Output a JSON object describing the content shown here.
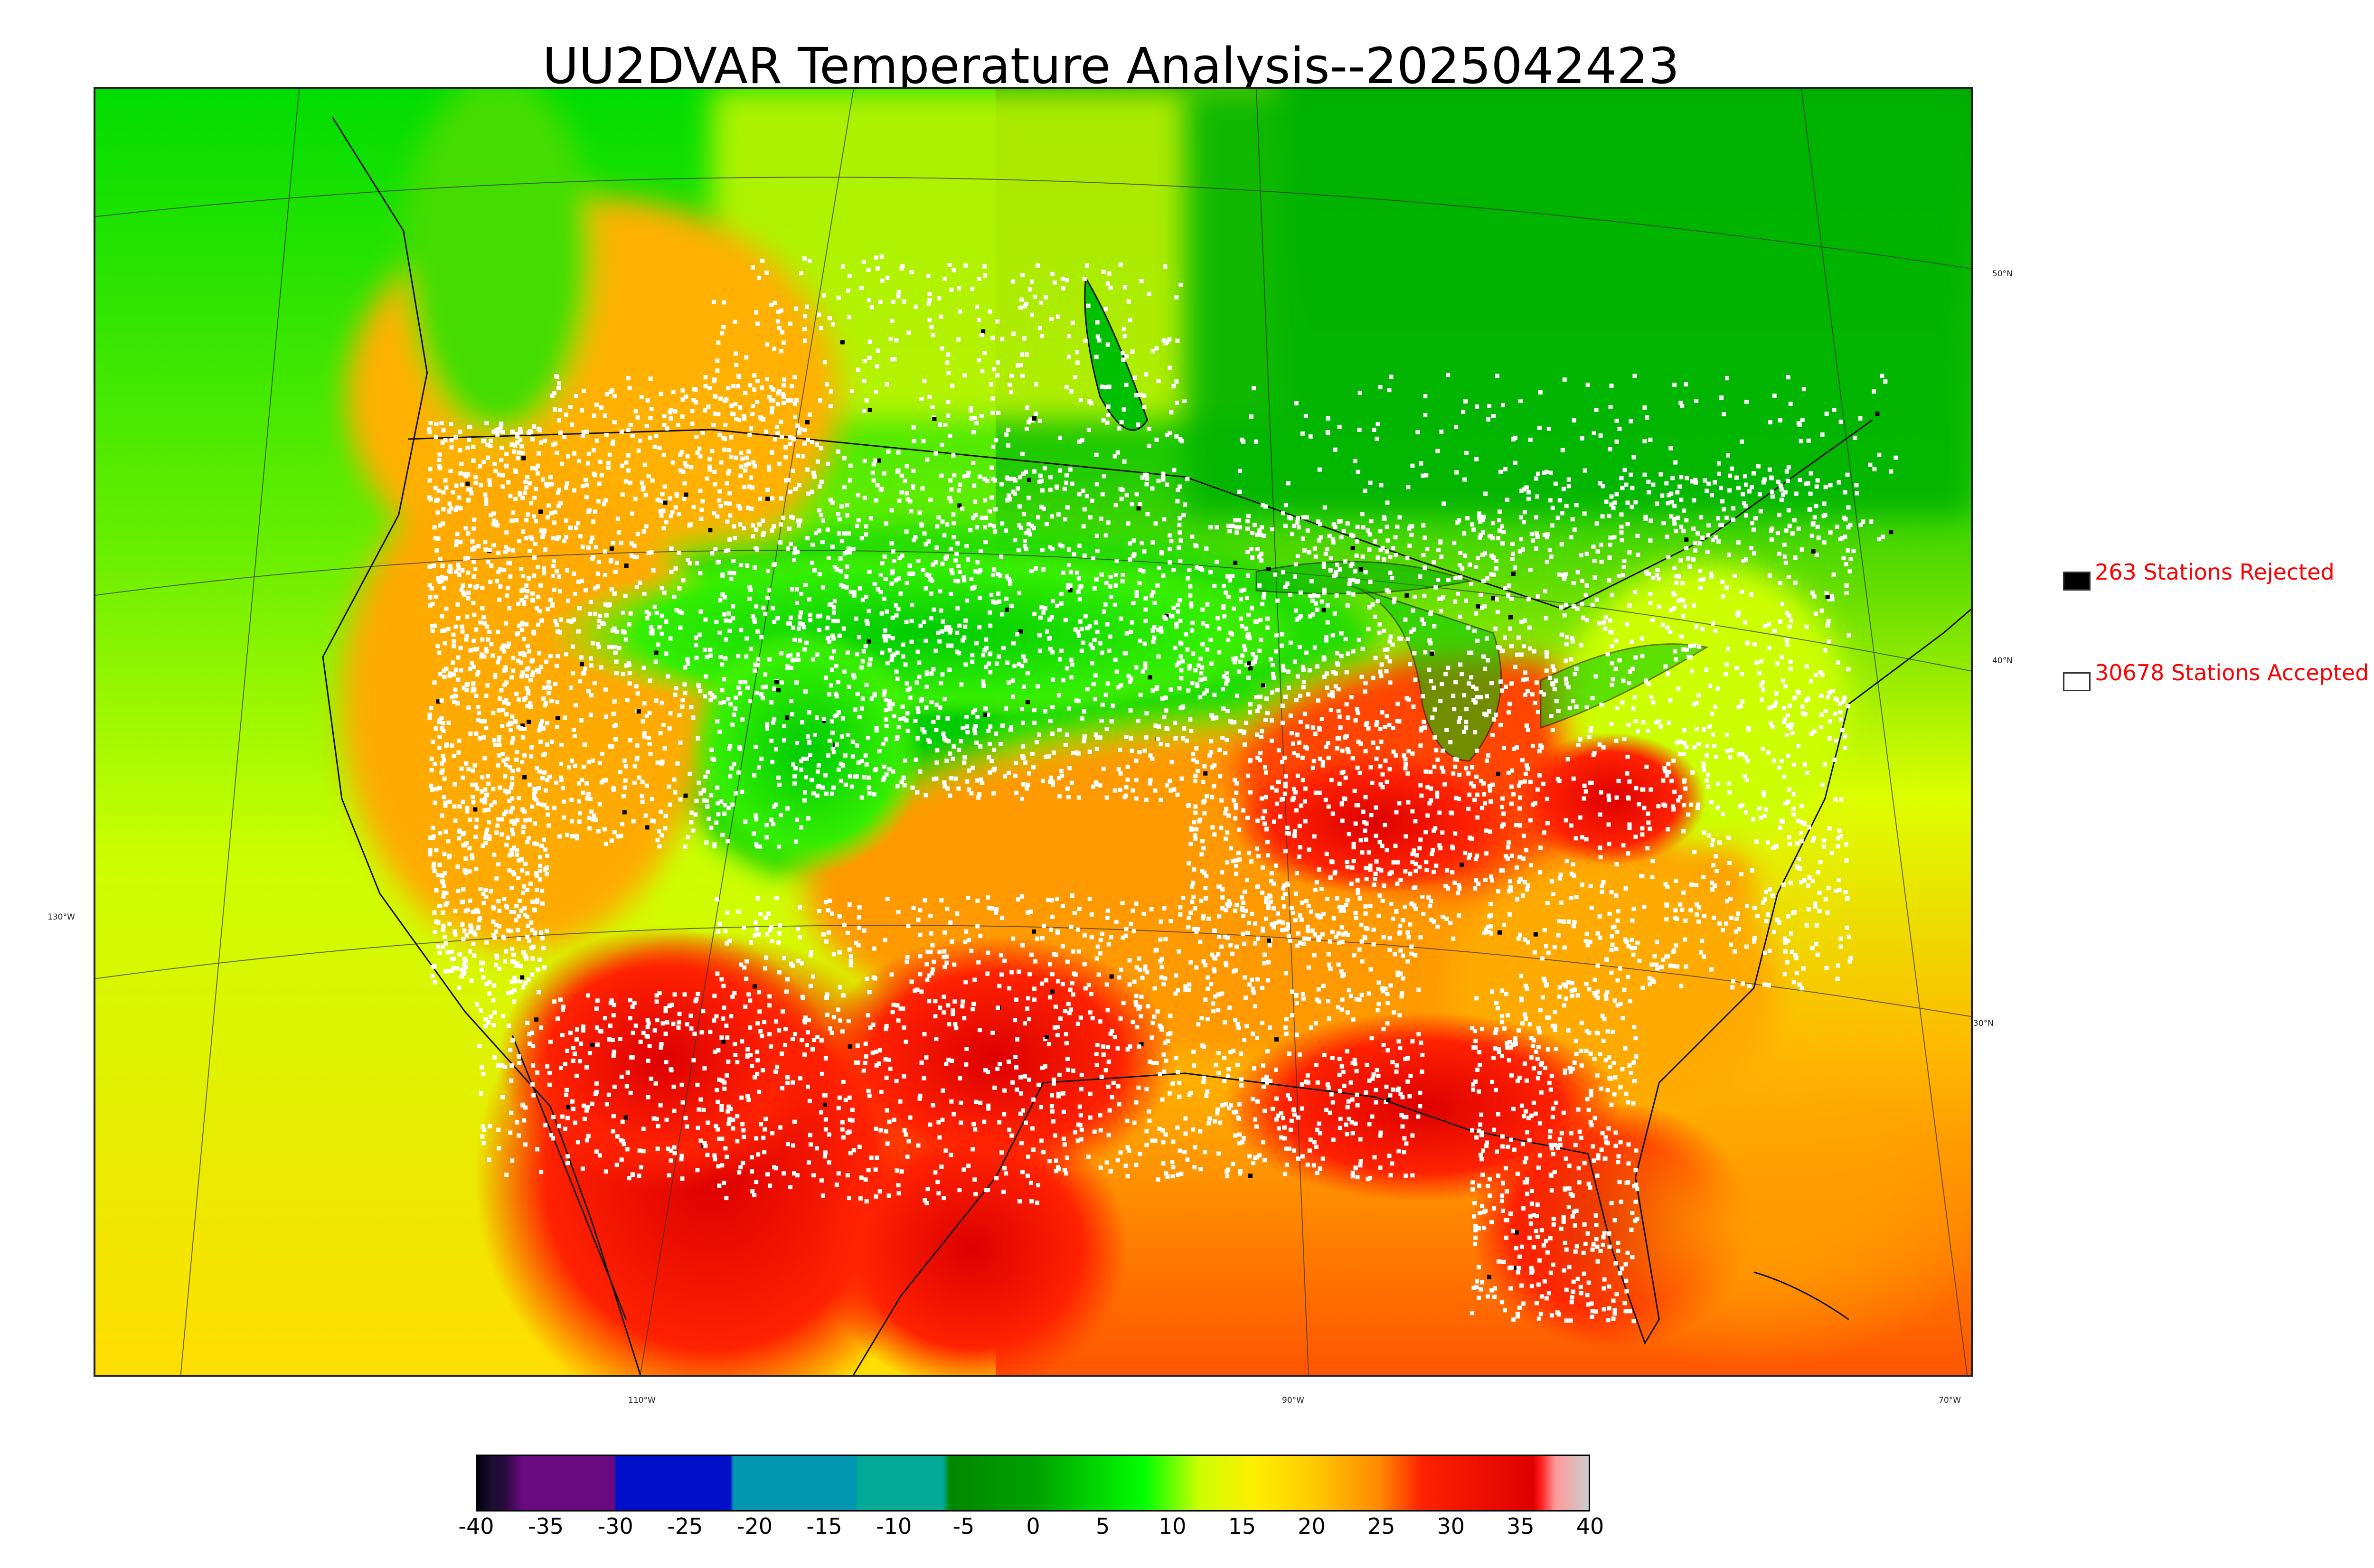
{
  "title": "UU2DVAR Temperature Analysis--2025042423",
  "map": {
    "lat_labels": [
      {
        "text": "50°N",
        "id": "lat-50"
      },
      {
        "text": "40°N",
        "id": "lat-40"
      },
      {
        "text": "30°N",
        "id": "lat-30"
      },
      {
        "text": "130°W",
        "id": "lon-130"
      }
    ],
    "lon_labels": [
      {
        "text": "110°W",
        "id": "lon-110"
      },
      {
        "text": "90°W",
        "id": "lon-90"
      },
      {
        "text": "70°W",
        "id": "lon-70"
      }
    ]
  },
  "legend": {
    "rejected": {
      "text": "263 Stations Rejected",
      "count": 263,
      "color": "#000000"
    },
    "accepted": {
      "text": "30678 Stations Accepted",
      "count": 30678,
      "color": "#ffffff"
    }
  },
  "colorbar": {
    "ticks": [
      "-40",
      "-35",
      "-30",
      "-25",
      "-20",
      "-15",
      "-10",
      "-5",
      "0",
      "5",
      "10",
      "15",
      "20",
      "25",
      "30",
      "35",
      "40"
    ],
    "min": -40,
    "max": 40,
    "stops": [
      {
        "v": -40,
        "c": "#000010"
      },
      {
        "v": -39,
        "c": "#1a1030"
      },
      {
        "v": -38,
        "c": "#2a0a40"
      },
      {
        "v": -36.8,
        "c": "#6a0a80"
      },
      {
        "v": -30.2,
        "c": "#6a0a80"
      },
      {
        "v": -30,
        "c": "#0010c8"
      },
      {
        "v": -21.8,
        "c": "#0010c8"
      },
      {
        "v": -21.6,
        "c": "#0096b0"
      },
      {
        "v": -12.8,
        "c": "#0096b0"
      },
      {
        "v": -12.6,
        "c": "#00aa96"
      },
      {
        "v": -6.5,
        "c": "#00aa96"
      },
      {
        "v": -6,
        "c": "#008800"
      },
      {
        "v": 0,
        "c": "#00a000"
      },
      {
        "v": 8,
        "c": "#00ff00"
      },
      {
        "v": 12,
        "c": "#ccff00"
      },
      {
        "v": 16,
        "c": "#ffee00"
      },
      {
        "v": 20,
        "c": "#ffcc00"
      },
      {
        "v": 25,
        "c": "#ff8800"
      },
      {
        "v": 28,
        "c": "#ff2200"
      },
      {
        "v": 36,
        "c": "#dd0000"
      },
      {
        "v": 36.6,
        "c": "#ff2222"
      },
      {
        "v": 37.6,
        "c": "#ff9999"
      },
      {
        "v": 40,
        "c": "#cccccc"
      }
    ]
  },
  "colors": {
    "cold": "#00c800",
    "mild": "#ccff00",
    "warm": "#ffb000",
    "hot": "#ee0000"
  }
}
